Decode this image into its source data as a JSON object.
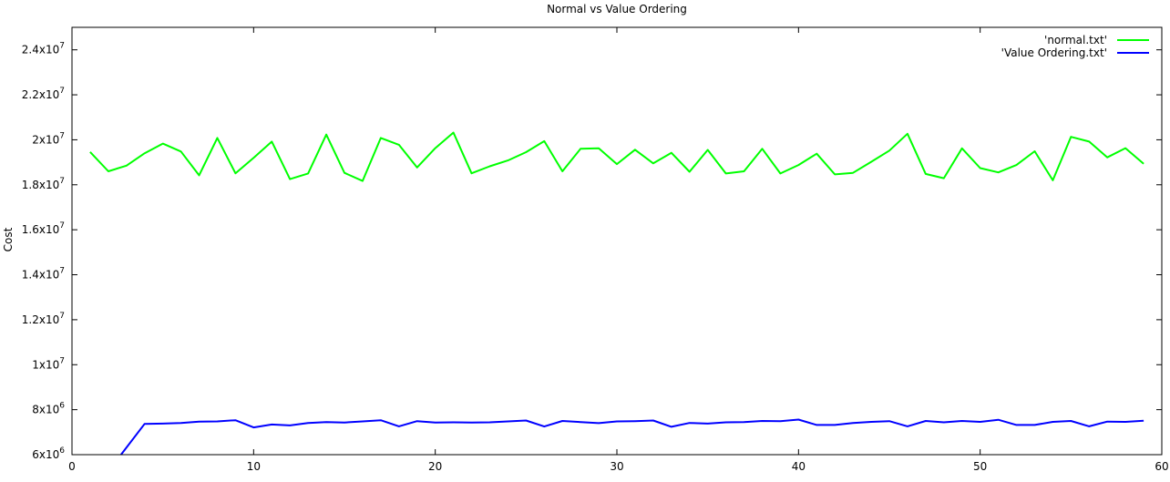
{
  "chart_data": {
    "type": "line",
    "title": "Normal vs Value Ordering",
    "xlabel": "",
    "ylabel": "Cost",
    "xlim": [
      0,
      60
    ],
    "ylim": [
      6000000,
      25000000
    ],
    "x_ticks": [
      {
        "value": 0,
        "label": "0"
      },
      {
        "value": 10,
        "label": "10"
      },
      {
        "value": 20,
        "label": "20"
      },
      {
        "value": 30,
        "label": "30"
      },
      {
        "value": 40,
        "label": "40"
      },
      {
        "value": 50,
        "label": "50"
      },
      {
        "value": 60,
        "label": "60"
      }
    ],
    "y_ticks": [
      {
        "value": 6000000,
        "mantissa": "6x10",
        "exp": "6"
      },
      {
        "value": 8000000,
        "mantissa": "8x10",
        "exp": "6"
      },
      {
        "value": 10000000,
        "mantissa": "1x10",
        "exp": "7"
      },
      {
        "value": 12000000,
        "mantissa": "1.2x10",
        "exp": "7"
      },
      {
        "value": 14000000,
        "mantissa": "1.4x10",
        "exp": "7"
      },
      {
        "value": 16000000,
        "mantissa": "1.6x10",
        "exp": "7"
      },
      {
        "value": 18000000,
        "mantissa": "1.8x10",
        "exp": "7"
      },
      {
        "value": 20000000,
        "mantissa": "2x10",
        "exp": "7"
      },
      {
        "value": 22000000,
        "mantissa": "2.2x10",
        "exp": "7"
      },
      {
        "value": 24000000,
        "mantissa": "2.4x10",
        "exp": "7"
      }
    ],
    "grid": false,
    "legend_position": "top-right",
    "series": [
      {
        "name": "'normal.txt'",
        "color": "#00ff00",
        "x": [
          1,
          2,
          3,
          4,
          5,
          6,
          7,
          8,
          9,
          10,
          11,
          12,
          13,
          14,
          15,
          16,
          17,
          18,
          19,
          20,
          21,
          22,
          23,
          24,
          25,
          26,
          27,
          28,
          29,
          30,
          31,
          32,
          33,
          34,
          35,
          36,
          37,
          38,
          39,
          40,
          41,
          42,
          43,
          44,
          45,
          46,
          47,
          48,
          49,
          50,
          51,
          52,
          53,
          54,
          55,
          56,
          57,
          58,
          59
        ],
        "y": [
          19460000,
          18600000,
          18850000,
          19400000,
          19830000,
          19480000,
          18420000,
          20080000,
          18510000,
          19200000,
          19920000,
          18250000,
          18500000,
          20230000,
          18530000,
          18170000,
          20080000,
          19780000,
          18770000,
          19630000,
          20320000,
          18510000,
          18820000,
          19080000,
          19450000,
          19940000,
          18600000,
          19600000,
          19620000,
          18920000,
          19560000,
          18950000,
          19420000,
          18580000,
          19550000,
          18500000,
          18600000,
          19600000,
          18500000,
          18880000,
          19380000,
          18460000,
          18530000,
          19020000,
          19520000,
          20270000,
          18480000,
          18290000,
          19620000,
          18740000,
          18550000,
          18880000,
          19490000,
          18200000,
          20130000,
          19920000,
          19220000,
          19630000,
          18930000
        ]
      },
      {
        "name": "'Value Ordering.txt'",
        "color": "#0000ff",
        "x": [
          2.7,
          4,
          5,
          6,
          7,
          8,
          9,
          10,
          11,
          12,
          13,
          14,
          15,
          16,
          17,
          18,
          19,
          20,
          21,
          22,
          23,
          24,
          25,
          26,
          27,
          28,
          29,
          30,
          31,
          32,
          33,
          34,
          35,
          36,
          37,
          38,
          39,
          40,
          41,
          42,
          43,
          44,
          45,
          46,
          47,
          48,
          49,
          50,
          51,
          52,
          53,
          54,
          55,
          56,
          57,
          58,
          59
        ],
        "y": [
          6000000,
          7370000,
          7380000,
          7410000,
          7470000,
          7480000,
          7530000,
          7210000,
          7340000,
          7300000,
          7410000,
          7450000,
          7430000,
          7480000,
          7530000,
          7260000,
          7490000,
          7430000,
          7440000,
          7430000,
          7440000,
          7480000,
          7520000,
          7250000,
          7500000,
          7450000,
          7400000,
          7480000,
          7490000,
          7520000,
          7240000,
          7410000,
          7380000,
          7440000,
          7450000,
          7500000,
          7490000,
          7560000,
          7320000,
          7320000,
          7410000,
          7460000,
          7490000,
          7260000,
          7500000,
          7440000,
          7500000,
          7460000,
          7550000,
          7320000,
          7320000,
          7460000,
          7500000,
          7260000,
          7470000,
          7460000,
          7510000
        ]
      }
    ]
  }
}
